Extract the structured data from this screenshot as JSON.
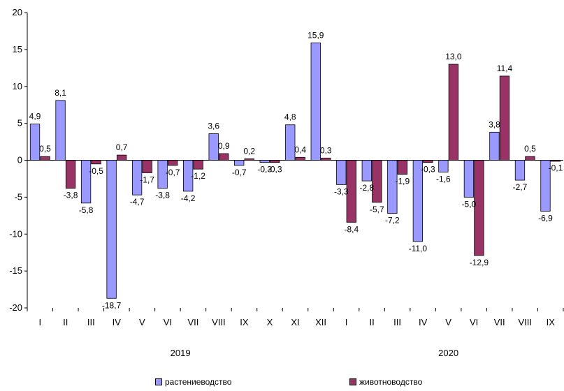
{
  "chart_data": {
    "type": "bar",
    "categories": [
      "I",
      "II",
      "III",
      "IV",
      "V",
      "VI",
      "VII",
      "VIII",
      "IX",
      "X",
      "XI",
      "XII",
      "I",
      "II",
      "III",
      "IV",
      "V",
      "VI",
      "VII",
      "VIII",
      "IX"
    ],
    "year_groups": [
      {
        "label": "2019",
        "start": 0,
        "end": 11
      },
      {
        "label": "2020",
        "start": 12,
        "end": 20
      }
    ],
    "series": [
      {
        "name": "растениеводство",
        "color": "#9999ff",
        "values": [
          4.9,
          8.1,
          -5.8,
          -18.7,
          -4.7,
          -3.8,
          -4.2,
          3.6,
          -0.7,
          -0.3,
          4.8,
          15.9,
          -3.3,
          -2.8,
          -7.2,
          -11.0,
          -1.6,
          -5.0,
          3.8,
          -2.7,
          -6.9
        ],
        "labels": [
          "4,9",
          "8,1",
          "-5,8",
          "-18,7",
          "-4,7",
          "-3,8",
          "-4,2",
          "3,6",
          "-0,7",
          "-0,3",
          "4,8",
          "15,9",
          "-3,3",
          "-2,8",
          "-7,2",
          "-11,0",
          "-1,6",
          "-5,0",
          "3,8",
          "-2,7",
          "-6,9"
        ]
      },
      {
        "name": "животноводство",
        "color": "#993366",
        "values": [
          0.5,
          -3.8,
          -0.5,
          0.7,
          -1.7,
          -0.7,
          -1.2,
          0.9,
          0.2,
          -0.3,
          0.4,
          0.3,
          -8.4,
          -5.7,
          -1.9,
          -0.3,
          13.0,
          -12.9,
          11.4,
          0.5,
          -0.1
        ],
        "labels": [
          "0,5",
          "-3,8",
          "-0,5",
          "0,7",
          "-1,7",
          "-0,7",
          "-1,2",
          "0,9",
          "0,2",
          "-0,3",
          "0,4",
          "0,3",
          "-8,4",
          "-5,7",
          "-1,9",
          "-0,3",
          "13,0",
          "-12,9",
          "11,4",
          "0,5",
          "-0,1"
        ]
      }
    ],
    "yticks": [
      "-20",
      "-15",
      "-10",
      "-5",
      "0",
      "5",
      "10",
      "15",
      "20"
    ],
    "ylim": [
      -20,
      20
    ],
    "grid": false,
    "legend_position": "bottom"
  }
}
